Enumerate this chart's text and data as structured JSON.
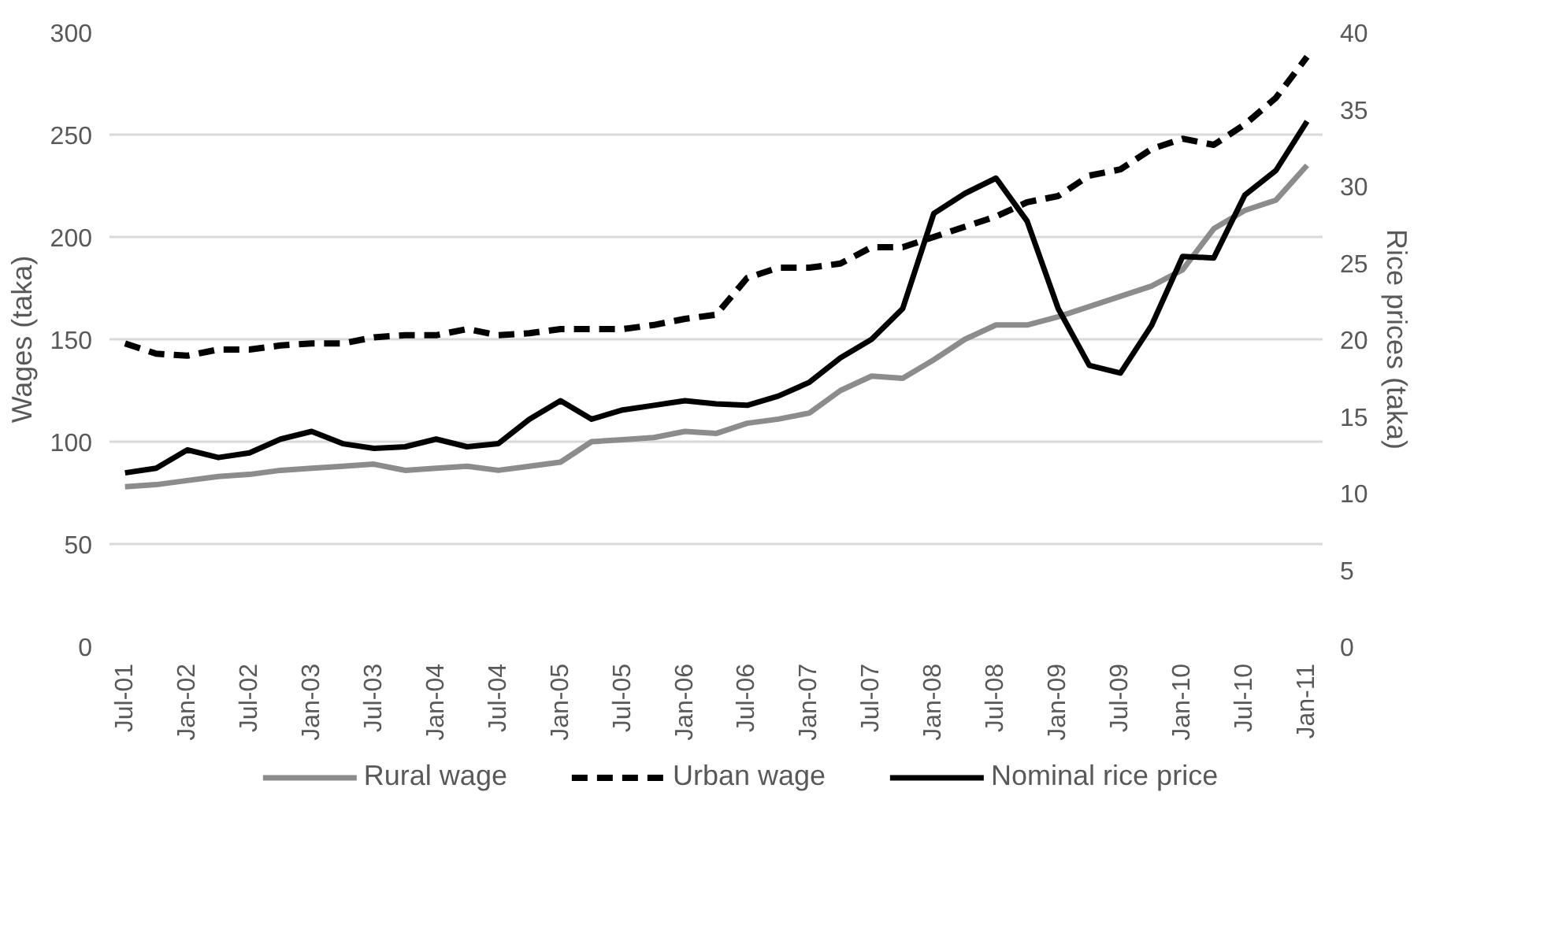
{
  "chart_data": {
    "type": "line",
    "categories": [
      "Jul-01",
      null,
      "Jan-02",
      null,
      "Jul-02",
      null,
      "Jan-03",
      null,
      "Jul-03",
      null,
      "Jan-04",
      null,
      "Jul-04",
      null,
      "Jan-05",
      null,
      "Jul-05",
      null,
      "Jan-06",
      null,
      "Jul-06",
      null,
      "Jan-07",
      null,
      "Jul-07",
      null,
      "Jan-08",
      null,
      "Jul-08",
      null,
      "Jan-09",
      null,
      "Jul-09",
      null,
      "Jan-10",
      null,
      "Jul-10",
      null,
      "Jan-11"
    ],
    "series": [
      {
        "name": "Rural wage",
        "color": "#8c8c8c",
        "line_style": "solid",
        "values": [
          78,
          79,
          81,
          83,
          84,
          86,
          87,
          88,
          89,
          86,
          87,
          88,
          86,
          88,
          90,
          100,
          101,
          102,
          105,
          104,
          109,
          111,
          114,
          125,
          132,
          131,
          140,
          150,
          157,
          157,
          161,
          166,
          171,
          176,
          184,
          204,
          213,
          218,
          235
        ]
      },
      {
        "name": "Urban wage",
        "color": "#000000",
        "line_style": "dashed",
        "values": [
          148,
          143,
          142,
          145,
          145,
          147,
          148,
          148,
          151,
          152,
          152,
          155,
          152,
          153,
          155,
          155,
          155,
          157,
          160,
          162,
          180,
          185,
          185,
          187,
          195,
          195,
          200,
          205,
          210,
          217,
          220,
          230,
          233,
          243,
          248,
          245,
          255,
          268,
          288
        ]
      },
      {
        "name": "Nominal rice price",
        "color": "#000000",
        "line_style": "solid",
        "axis": "y2",
        "values": [
          11.3,
          11.6,
          12.8,
          12.3,
          12.6,
          13.5,
          14.0,
          13.2,
          12.9,
          13.0,
          13.5,
          13.0,
          13.2,
          14.8,
          16.0,
          14.8,
          15.4,
          15.7,
          16.0,
          15.8,
          15.7,
          16.3,
          17.2,
          18.8,
          20.0,
          22.0,
          28.2,
          29.5,
          30.5,
          27.7,
          22.0,
          18.3,
          17.8,
          20.9,
          25.4,
          25.3,
          29.4,
          31.0,
          34.2
        ]
      }
    ],
    "ylabel": "Wages (taka)",
    "y2label": "Rice prices (taka)",
    "ylim": [
      0,
      300
    ],
    "yticks": [
      0,
      50,
      100,
      150,
      200,
      250,
      300
    ],
    "y2lim": [
      0,
      40
    ],
    "y2ticks": [
      0,
      5,
      10,
      15,
      20,
      25,
      30,
      35,
      40
    ],
    "grid": "y",
    "legend": "bottom"
  }
}
